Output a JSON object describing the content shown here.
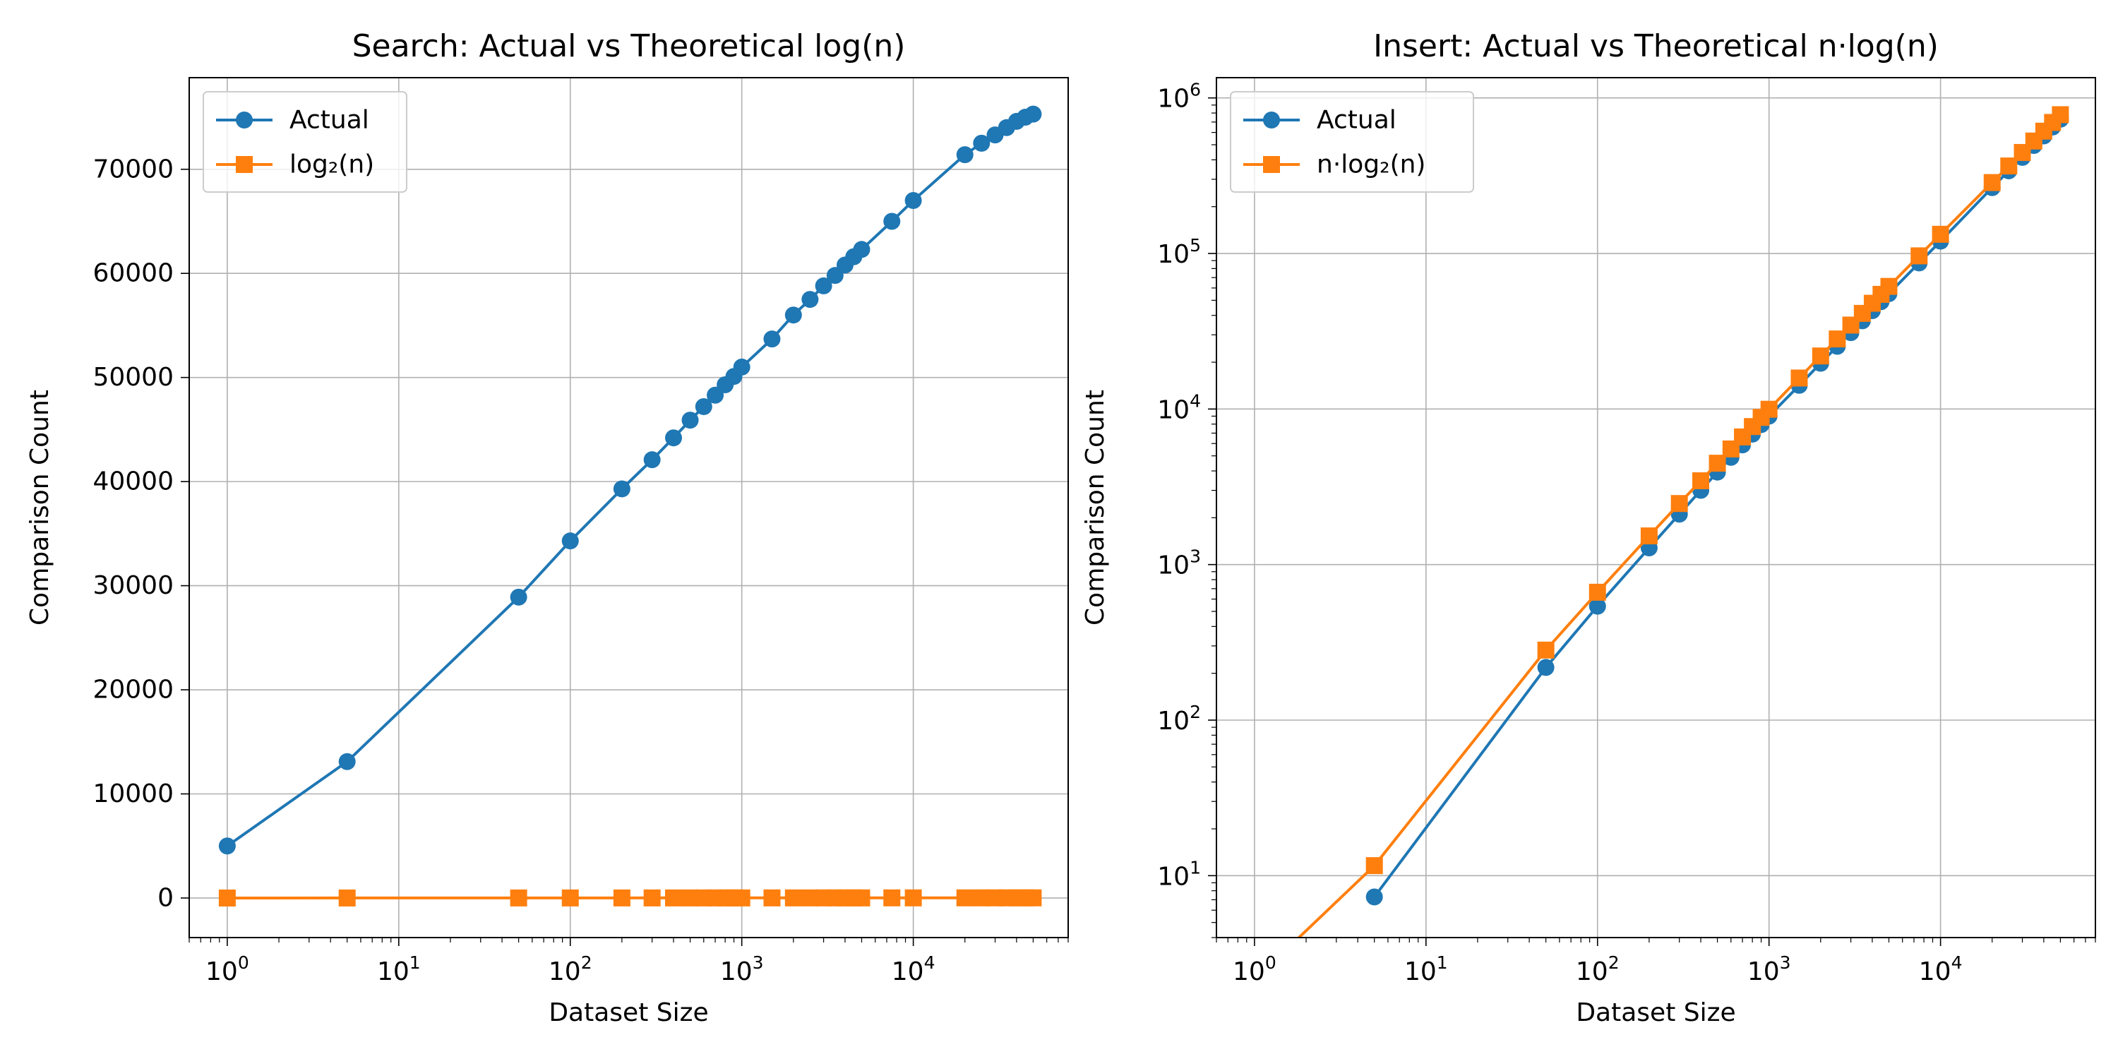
{
  "colors": {
    "actual": "#1f77b4",
    "theoretical": "#ff7f0e",
    "grid": "#b0b0b0",
    "axes": "#000000"
  },
  "chart_data": [
    {
      "type": "line",
      "title": "Search: Actual vs Theoretical log(n)",
      "xlabel": "Dataset Size",
      "ylabel": "Comparison Count",
      "xscale": "log",
      "yscale": "linear",
      "xlim": [
        0.6,
        80000
      ],
      "ylim": [
        -3800,
        78800
      ],
      "x_ticks": [
        {
          "base": "10",
          "exp": "0",
          "value": 1
        },
        {
          "base": "10",
          "exp": "1",
          "value": 10
        },
        {
          "base": "10",
          "exp": "2",
          "value": 100
        },
        {
          "base": "10",
          "exp": "3",
          "value": 1000
        },
        {
          "base": "10",
          "exp": "4",
          "value": 10000
        }
      ],
      "y_ticks": [
        {
          "label": "0",
          "value": 0
        },
        {
          "label": "10000",
          "value": 10000
        },
        {
          "label": "20000",
          "value": 20000
        },
        {
          "label": "30000",
          "value": 30000
        },
        {
          "label": "40000",
          "value": 40000
        },
        {
          "label": "50000",
          "value": 50000
        },
        {
          "label": "60000",
          "value": 60000
        },
        {
          "label": "70000",
          "value": 70000
        }
      ],
      "grid": true,
      "legend_position": "upper-left",
      "series": [
        {
          "name": "Actual",
          "marker": "circle",
          "color_key": "actual",
          "x": [
            1,
            5,
            50,
            100,
            200,
            300,
            400,
            500,
            600,
            700,
            800,
            900,
            1000,
            1500,
            2000,
            2500,
            3000,
            3500,
            4000,
            4500,
            5000,
            7500,
            10000,
            20000,
            25000,
            30000,
            35000,
            40000,
            45000,
            50000
          ],
          "y": [
            5000,
            13100,
            28900,
            34300,
            39300,
            42100,
            44200,
            45900,
            47200,
            48300,
            49300,
            50100,
            51000,
            53700,
            56000,
            57500,
            58800,
            59800,
            60800,
            61600,
            62300,
            65000,
            67000,
            71400,
            72500,
            73300,
            74000,
            74600,
            75000,
            75300
          ]
        },
        {
          "name": "log₂(n)",
          "marker": "square",
          "color_key": "theoretical",
          "x": [
            1,
            5,
            50,
            100,
            200,
            300,
            400,
            500,
            600,
            700,
            800,
            900,
            1000,
            1500,
            2000,
            2500,
            3000,
            3500,
            4000,
            4500,
            5000,
            7500,
            10000,
            20000,
            25000,
            30000,
            35000,
            40000,
            45000,
            50000
          ],
          "y": [
            0,
            2.32,
            5.64,
            6.64,
            7.64,
            8.23,
            8.64,
            8.97,
            9.23,
            9.45,
            9.64,
            9.81,
            9.97,
            10.55,
            10.97,
            11.29,
            11.55,
            11.77,
            11.97,
            12.14,
            12.29,
            12.87,
            13.29,
            14.29,
            14.61,
            14.87,
            15.1,
            15.29,
            15.46,
            15.61
          ]
        }
      ]
    },
    {
      "type": "line",
      "title": "Insert: Actual vs Theoretical n·log(n)",
      "xlabel": "Dataset Size",
      "ylabel": "Comparison Count",
      "xscale": "log",
      "yscale": "log",
      "xlim": [
        0.6,
        80000
      ],
      "ylim": [
        4,
        1350000
      ],
      "x_ticks": [
        {
          "base": "10",
          "exp": "0",
          "value": 1
        },
        {
          "base": "10",
          "exp": "1",
          "value": 10
        },
        {
          "base": "10",
          "exp": "2",
          "value": 100
        },
        {
          "base": "10",
          "exp": "3",
          "value": 1000
        },
        {
          "base": "10",
          "exp": "4",
          "value": 10000
        }
      ],
      "y_ticks": [
        {
          "base": "10",
          "exp": "1",
          "value": 10
        },
        {
          "base": "10",
          "exp": "2",
          "value": 100
        },
        {
          "base": "10",
          "exp": "3",
          "value": 1000
        },
        {
          "base": "10",
          "exp": "4",
          "value": 10000
        },
        {
          "base": "10",
          "exp": "5",
          "value": 100000
        },
        {
          "base": "10",
          "exp": "6",
          "value": 1000000
        }
      ],
      "grid": true,
      "legend_position": "upper-left",
      "series": [
        {
          "name": "Actual",
          "marker": "circle",
          "color_key": "actual",
          "x": [
            5,
            50,
            100,
            200,
            300,
            400,
            500,
            600,
            700,
            800,
            900,
            1000,
            1500,
            2000,
            2500,
            3000,
            3500,
            4000,
            4500,
            5000,
            7500,
            10000,
            20000,
            25000,
            30000,
            35000,
            40000,
            45000,
            50000
          ],
          "y": [
            7.3,
            218,
            540,
            1280,
            2110,
            3000,
            3930,
            4890,
            5880,
            6900,
            7940,
            9000,
            14200,
            19700,
            25300,
            31000,
            36900,
            42900,
            49000,
            55200,
            87000,
            120000,
            265000,
            340000,
            415000,
            495000,
            570000,
            650000,
            730000
          ]
        },
        {
          "name": "n·log₂(n)",
          "marker": "square",
          "color_key": "theoretical",
          "x": [
            1,
            5,
            50,
            100,
            200,
            300,
            400,
            500,
            600,
            700,
            800,
            900,
            1000,
            1500,
            2000,
            2500,
            3000,
            3500,
            4000,
            4500,
            5000,
            7500,
            10000,
            20000,
            25000,
            30000,
            35000,
            40000,
            45000,
            50000
          ],
          "y": [
            0,
            11.6,
            282,
            664,
            1529,
            2469,
            3458,
            4483,
            5537,
            6615,
            7715,
            8832,
            9966,
            15826,
            21932,
            28219,
            34652,
            41206,
            47863,
            54608,
            61439,
            96550,
            132877,
            285754,
            365241,
            446180,
            528500,
            611508,
            695812,
            780482
          ]
        }
      ]
    }
  ]
}
